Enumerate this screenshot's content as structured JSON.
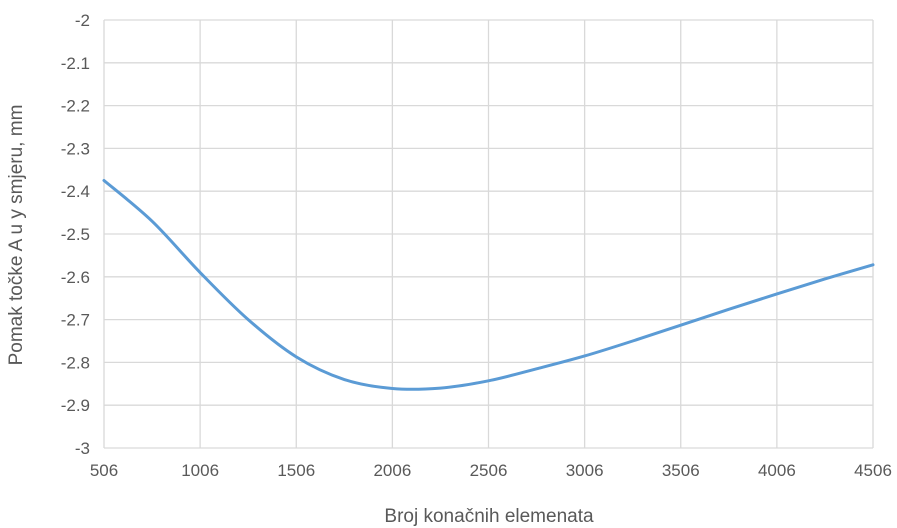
{
  "chart_data": {
    "type": "line",
    "title": "",
    "xlabel": "Broj konačnih elemenata",
    "ylabel": "Pomak točke A u y smjeru, mm",
    "xlim": [
      506,
      4506
    ],
    "ylim": [
      -3,
      -2
    ],
    "x_ticks": [
      506,
      1006,
      1506,
      2006,
      2506,
      3006,
      3506,
      4006,
      4506
    ],
    "x_tick_labels": [
      "506",
      "1006",
      "1506",
      "2006",
      "2506",
      "3006",
      "3506",
      "4006",
      "4506"
    ],
    "y_ticks": [
      -2,
      -2.1,
      -2.2,
      -2.3,
      -2.4,
      -2.5,
      -2.6,
      -2.7,
      -2.8,
      -2.9,
      -3
    ],
    "y_tick_labels": [
      "-2",
      "-2.1",
      "-2.2",
      "-2.3",
      "-2.4",
      "-2.5",
      "-2.6",
      "-2.7",
      "-2.8",
      "-2.9",
      "-3"
    ],
    "grid": true,
    "legend": "none",
    "series": [
      {
        "color": "#5b9bd5",
        "smooth": true,
        "x": [
          506,
          756,
          1006,
          1256,
          1506,
          1756,
          2006,
          2256,
          2506,
          2756,
          3006,
          3256,
          3506,
          3756,
          4006,
          4256,
          4506
        ],
        "y": [
          -2.375,
          -2.47,
          -2.59,
          -2.7,
          -2.787,
          -2.84,
          -2.861,
          -2.86,
          -2.843,
          -2.815,
          -2.785,
          -2.75,
          -2.713,
          -2.676,
          -2.64,
          -2.605,
          -2.572
        ]
      }
    ]
  }
}
